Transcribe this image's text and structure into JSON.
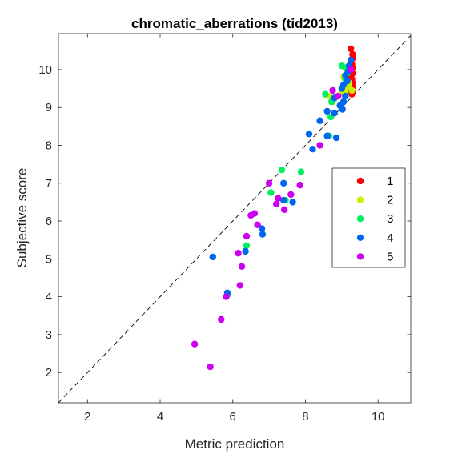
{
  "chart_data": {
    "type": "scatter",
    "title": "chromatic_aberrations (tid2013)",
    "xlabel": "Metric prediction",
    "ylabel": "Subjective score",
    "xlim": [
      1.2,
      10.9
    ],
    "ylim": [
      1.2,
      10.95
    ],
    "xticks": [
      2,
      4,
      6,
      8,
      10
    ],
    "yticks": [
      2,
      3,
      4,
      5,
      6,
      7,
      8,
      9,
      10
    ],
    "grid": false,
    "reference_line": "dashed diagonal y = x",
    "legend_position": "right",
    "series": [
      {
        "name": "1",
        "color": "#ff0000",
        "points": [
          [
            9.25,
            10.55
          ],
          [
            9.3,
            10.4
          ],
          [
            9.3,
            10.3
          ],
          [
            9.28,
            10.15
          ],
          [
            9.3,
            10.05
          ],
          [
            9.25,
            9.95
          ],
          [
            9.2,
            9.85
          ],
          [
            9.28,
            9.75
          ],
          [
            9.3,
            9.65
          ],
          [
            9.22,
            9.6
          ],
          [
            9.3,
            9.55
          ],
          [
            9.25,
            9.45
          ],
          [
            9.3,
            9.4
          ],
          [
            9.28,
            9.35
          ],
          [
            9.2,
            9.7
          ],
          [
            9.3,
            9.9
          ]
        ]
      },
      {
        "name": "2",
        "color": "#c8f000",
        "points": [
          [
            9.05,
            9.8
          ],
          [
            9.15,
            9.7
          ],
          [
            9.2,
            9.55
          ],
          [
            9.1,
            9.5
          ],
          [
            9.28,
            9.45
          ],
          [
            9.0,
            9.4
          ],
          [
            9.1,
            9.35
          ],
          [
            9.2,
            9.65
          ],
          [
            8.65,
            9.3
          ],
          [
            8.75,
            9.15
          ],
          [
            9.1,
            9.85
          ]
        ]
      },
      {
        "name": "3",
        "color": "#00f060",
        "points": [
          [
            9.0,
            10.1
          ],
          [
            9.1,
            10.05
          ],
          [
            9.15,
            9.9
          ],
          [
            9.1,
            9.75
          ],
          [
            8.55,
            9.35
          ],
          [
            8.72,
            9.15
          ],
          [
            8.7,
            8.75
          ],
          [
            8.65,
            8.25
          ],
          [
            7.35,
            7.35
          ],
          [
            7.88,
            7.3
          ],
          [
            7.05,
            6.75
          ],
          [
            7.45,
            6.55
          ],
          [
            6.38,
            5.35
          ],
          [
            5.85,
            4.05
          ]
        ]
      },
      {
        "name": "4",
        "color": "#0066ee",
        "points": [
          [
            9.25,
            10.25
          ],
          [
            9.2,
            10.1
          ],
          [
            9.18,
            9.95
          ],
          [
            9.1,
            9.85
          ],
          [
            9.15,
            9.7
          ],
          [
            9.05,
            9.6
          ],
          [
            9.0,
            9.5
          ],
          [
            9.1,
            9.3
          ],
          [
            9.05,
            9.15
          ],
          [
            8.95,
            9.05
          ],
          [
            9.02,
            8.95
          ],
          [
            8.8,
            9.25
          ],
          [
            8.6,
            8.9
          ],
          [
            8.8,
            8.85
          ],
          [
            8.4,
            8.65
          ],
          [
            8.1,
            8.3
          ],
          [
            8.6,
            8.25
          ],
          [
            8.85,
            8.2
          ],
          [
            8.2,
            7.9
          ],
          [
            7.4,
            7.0
          ],
          [
            7.4,
            6.55
          ],
          [
            7.65,
            6.5
          ],
          [
            6.8,
            5.8
          ],
          [
            6.82,
            5.65
          ],
          [
            6.35,
            5.2
          ],
          [
            5.45,
            5.05
          ],
          [
            5.85,
            4.1
          ]
        ]
      },
      {
        "name": "5",
        "color": "#cc00ee",
        "points": [
          [
            9.25,
            10.0
          ],
          [
            8.75,
            9.45
          ],
          [
            8.9,
            9.3
          ],
          [
            8.4,
            8.0
          ],
          [
            7.0,
            7.0
          ],
          [
            7.85,
            6.95
          ],
          [
            7.25,
            6.6
          ],
          [
            7.6,
            6.7
          ],
          [
            7.2,
            6.45
          ],
          [
            7.42,
            6.3
          ],
          [
            6.6,
            6.2
          ],
          [
            6.5,
            6.15
          ],
          [
            6.68,
            5.9
          ],
          [
            6.38,
            5.6
          ],
          [
            6.15,
            5.15
          ],
          [
            6.25,
            4.8
          ],
          [
            6.2,
            4.3
          ],
          [
            5.82,
            4.0
          ],
          [
            5.68,
            3.4
          ],
          [
            4.95,
            2.75
          ],
          [
            5.38,
            2.15
          ]
        ]
      }
    ]
  }
}
